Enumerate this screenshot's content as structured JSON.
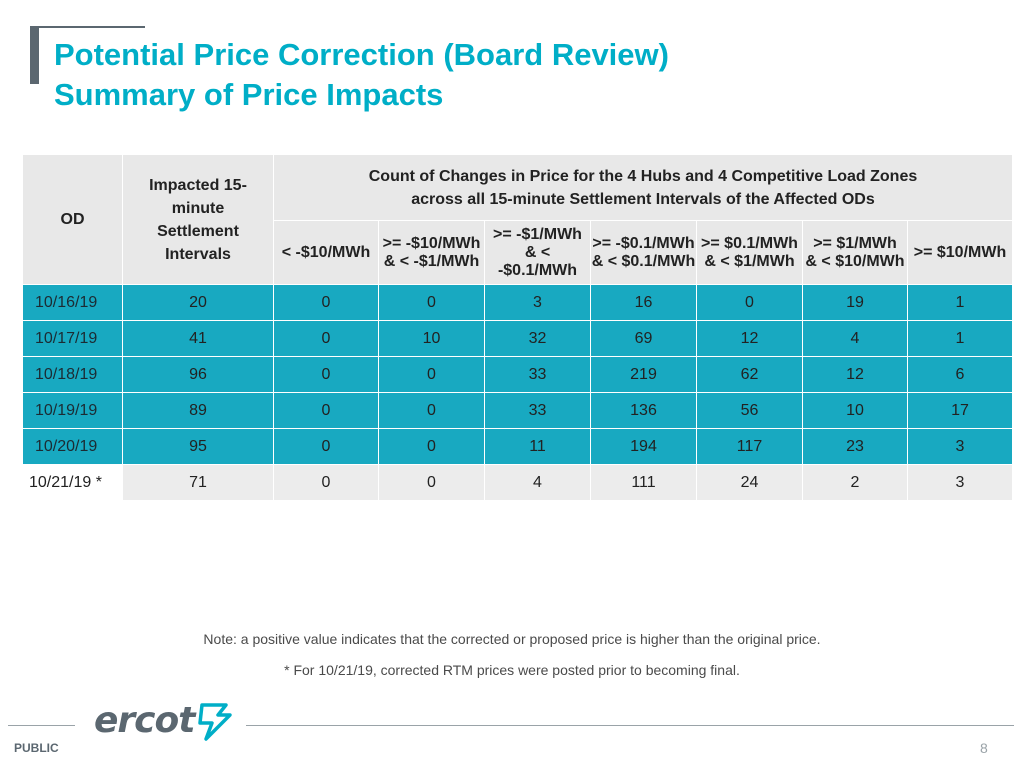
{
  "title": {
    "line1": "Potential Price Correction (Board Review)",
    "line2": "Summary of Price Impacts"
  },
  "table": {
    "header": {
      "od": "OD",
      "intervals_lines": [
        "Impacted 15-",
        "minute",
        "Settlement",
        "Intervals"
      ],
      "count_lines": [
        "Count of Changes in Price for the 4 Hubs and 4 Competitive Load Zones",
        "across all 15-minute Settlement Intervals of the Affected ODs"
      ],
      "bins": [
        [
          "< -$10/MWh"
        ],
        [
          ">= -$10/MWh",
          "& < -$1/MWh"
        ],
        [
          ">= -$1/MWh",
          "& < -$0.1/MWh"
        ],
        [
          ">= -$0.1/MWh",
          "& < $0.1/MWh"
        ],
        [
          ">= $0.1/MWh",
          "& < $1/MWh"
        ],
        [
          ">= $1/MWh",
          "& < $10/MWh"
        ],
        [
          ">= $10/MWh"
        ]
      ]
    },
    "rows": [
      {
        "od": "10/16/19",
        "intervals": "20",
        "counts": [
          "0",
          "0",
          "3",
          "16",
          "0",
          "19",
          "1"
        ]
      },
      {
        "od": "10/17/19",
        "intervals": "41",
        "counts": [
          "0",
          "10",
          "32",
          "69",
          "12",
          "4",
          "1"
        ]
      },
      {
        "od": "10/18/19",
        "intervals": "96",
        "counts": [
          "0",
          "0",
          "33",
          "219",
          "62",
          "12",
          "6"
        ]
      },
      {
        "od": "10/19/19",
        "intervals": "89",
        "counts": [
          "0",
          "0",
          "33",
          "136",
          "56",
          "10",
          "17"
        ]
      },
      {
        "od": "10/20/19",
        "intervals": "95",
        "counts": [
          "0",
          "0",
          "11",
          "194",
          "117",
          "23",
          "3"
        ]
      },
      {
        "od": "10/21/19 *",
        "intervals": "71",
        "counts": [
          "0",
          "0",
          "4",
          "111",
          "24",
          "2",
          "3"
        ]
      }
    ]
  },
  "notes": {
    "note1": "Note: a positive value indicates that the corrected or proposed price is higher than the original price.",
    "note2": "* For 10/21/19, corrected RTM prices were posted prior to becoming final."
  },
  "footer": {
    "logo": "ercot",
    "classification": "PUBLIC",
    "page": "8"
  },
  "colors": {
    "accent": "#00aec7",
    "row_fill": "#18a9c1",
    "header_fill": "#e8e8e8",
    "gray": "#5b6770"
  }
}
